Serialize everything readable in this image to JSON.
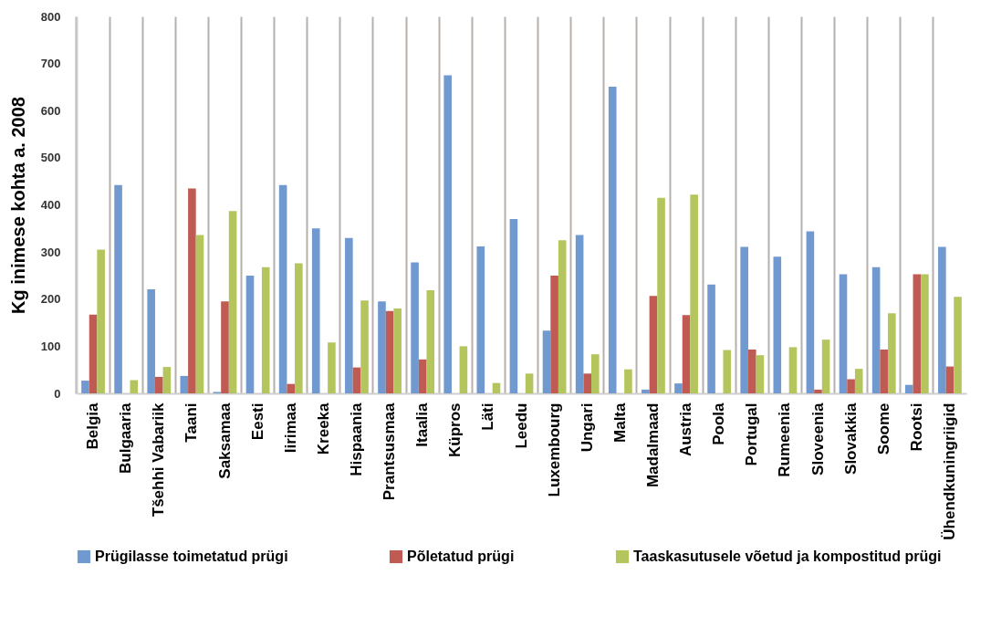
{
  "chart_data": {
    "type": "bar",
    "ylabel": "Kg inimese kohta a. 2008",
    "categories": [
      "Belgia",
      "Bulgaaria",
      "Tšehhi Vabariik",
      "Taani",
      "Saksamaa",
      "Eesti",
      "Iirimaa",
      "Kreeka",
      "Hispaania",
      "Prantsusmaa",
      "Itaalia",
      "Küpros",
      "Läti",
      "Leedu",
      "Luxembourg",
      "Ungari",
      "Malta",
      "Madalmaad",
      "Austria",
      "Poola",
      "Portugal",
      "Rumeenia",
      "Sloveenia",
      "Slovakkia",
      "Soome",
      "Rootsi",
      "Ühendkuningriigid"
    ],
    "series": [
      {
        "name": "Prügilasse toimetatud prügi",
        "color": "#7099cf",
        "values": [
          27,
          442,
          221,
          37,
          3,
          250,
          442,
          350,
          330,
          195,
          278,
          675,
          312,
          370,
          133,
          336,
          651,
          8,
          21,
          231,
          311,
          290,
          344,
          253,
          268,
          18,
          311
        ]
      },
      {
        "name": "Põletatud prügi",
        "color": "#bf5b52",
        "values": [
          167,
          0,
          35,
          435,
          195,
          0,
          20,
          0,
          55,
          175,
          72,
          0,
          0,
          0,
          250,
          42,
          0,
          207,
          166,
          0,
          93,
          0,
          8,
          30,
          93,
          253,
          57
        ]
      },
      {
        "name": "Taaskasutusele võetud ja kompostitud prügi",
        "color": "#b5c55e",
        "values": [
          305,
          28,
          56,
          336,
          387,
          268,
          276,
          108,
          197,
          180,
          219,
          100,
          22,
          42,
          325,
          83,
          51,
          415,
          422,
          92,
          81,
          98,
          114,
          52,
          170,
          253,
          205
        ]
      }
    ],
    "ylim": [
      0,
      800
    ],
    "yticks": [
      0,
      100,
      200,
      300,
      400,
      500,
      600,
      700,
      800
    ],
    "grid": "x",
    "legend": "bottom"
  }
}
